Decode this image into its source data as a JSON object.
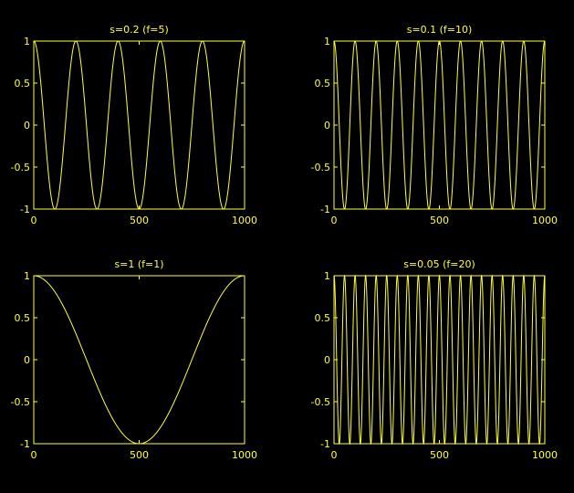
{
  "figure": {
    "background": "#000000",
    "line_color": "#ffff33"
  },
  "chart_data": [
    {
      "type": "line",
      "title": "s=0.2 (f=5)",
      "function": "cos(2*pi*f*x/1000)",
      "frequency": 5,
      "x_range": [
        0,
        1000
      ],
      "ylim": [
        -1,
        1
      ],
      "xticks": [
        "0",
        "500",
        "1000"
      ],
      "yticks": [
        "1",
        "0.5",
        "0",
        "-0.5",
        "-1"
      ],
      "grid": false
    },
    {
      "type": "line",
      "title": "s=0.1 (f=10)",
      "function": "cos(2*pi*f*x/1000)",
      "frequency": 10,
      "x_range": [
        0,
        1000
      ],
      "ylim": [
        -1,
        1
      ],
      "xticks": [
        "0",
        "500",
        "1000"
      ],
      "yticks": [
        "1",
        "0.5",
        "0",
        "-0.5",
        "-1"
      ],
      "grid": false
    },
    {
      "type": "line",
      "title": "s=1 (f=1)",
      "function": "cos(2*pi*f*x/1000)",
      "frequency": 1,
      "x_range": [
        0,
        1000
      ],
      "ylim": [
        -1,
        1
      ],
      "xticks": [
        "0",
        "500",
        "1000"
      ],
      "yticks": [
        "1",
        "0.5",
        "0",
        "-0.5",
        "-1"
      ],
      "grid": false
    },
    {
      "type": "line",
      "title": "s=0.05 (f=20)",
      "function": "cos(2*pi*f*x/1000)",
      "frequency": 20,
      "x_range": [
        0,
        1000
      ],
      "ylim": [
        -1,
        1
      ],
      "xticks": [
        "0",
        "500",
        "1000"
      ],
      "yticks": [
        "1",
        "0.5",
        "0",
        "-0.5",
        "-1"
      ],
      "grid": false
    }
  ]
}
